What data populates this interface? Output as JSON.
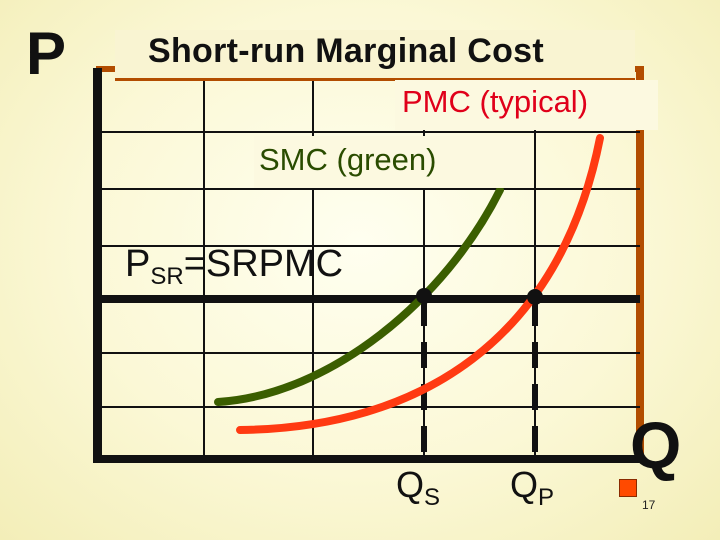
{
  "slide": {
    "title": "Short-run Marginal Cost",
    "slide_number": "17"
  },
  "axes": {
    "y_label": "P",
    "x_label": "Q"
  },
  "labels": {
    "pmc": "PMC (typical)",
    "smc": "SMC (green)",
    "psr_main": "P",
    "psr_sub": "SR",
    "psr_rest": "=SRPMC",
    "qs_main": "Q",
    "qs_sub": "S",
    "qp_main": "Q",
    "qp_sub": "P"
  },
  "colors": {
    "smc_curve": "#3b5e00",
    "pmc_curve": "#ff3a12",
    "axis": "#111111",
    "frame_shadow": "#b24d00",
    "background": "#fbf8d6"
  }
}
